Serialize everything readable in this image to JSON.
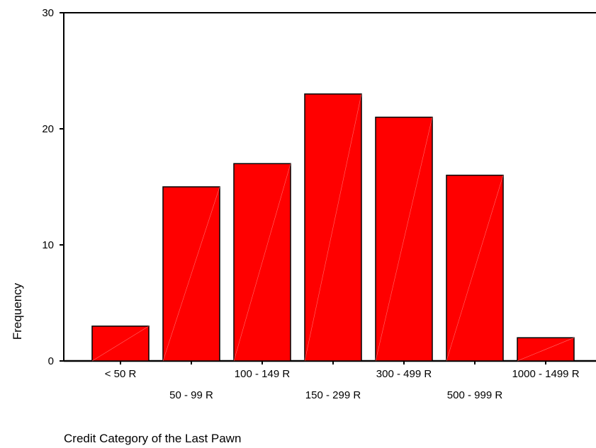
{
  "chart_data": {
    "type": "bar",
    "title": "",
    "xlabel": "Credit Category of the Last Pawn",
    "ylabel": "Frequency",
    "categories": [
      "< 50 R",
      "50 - 99 R",
      "100 - 149 R",
      "150 - 299 R",
      "300 - 499 R",
      "500 - 999 R",
      "1000 - 1499 R"
    ],
    "values": [
      3,
      15,
      17,
      23,
      21,
      16,
      2
    ],
    "ylim": [
      0,
      30
    ],
    "yticks": [
      0,
      10,
      20,
      30
    ],
    "grid": false,
    "bar_color": "#ff0000"
  }
}
